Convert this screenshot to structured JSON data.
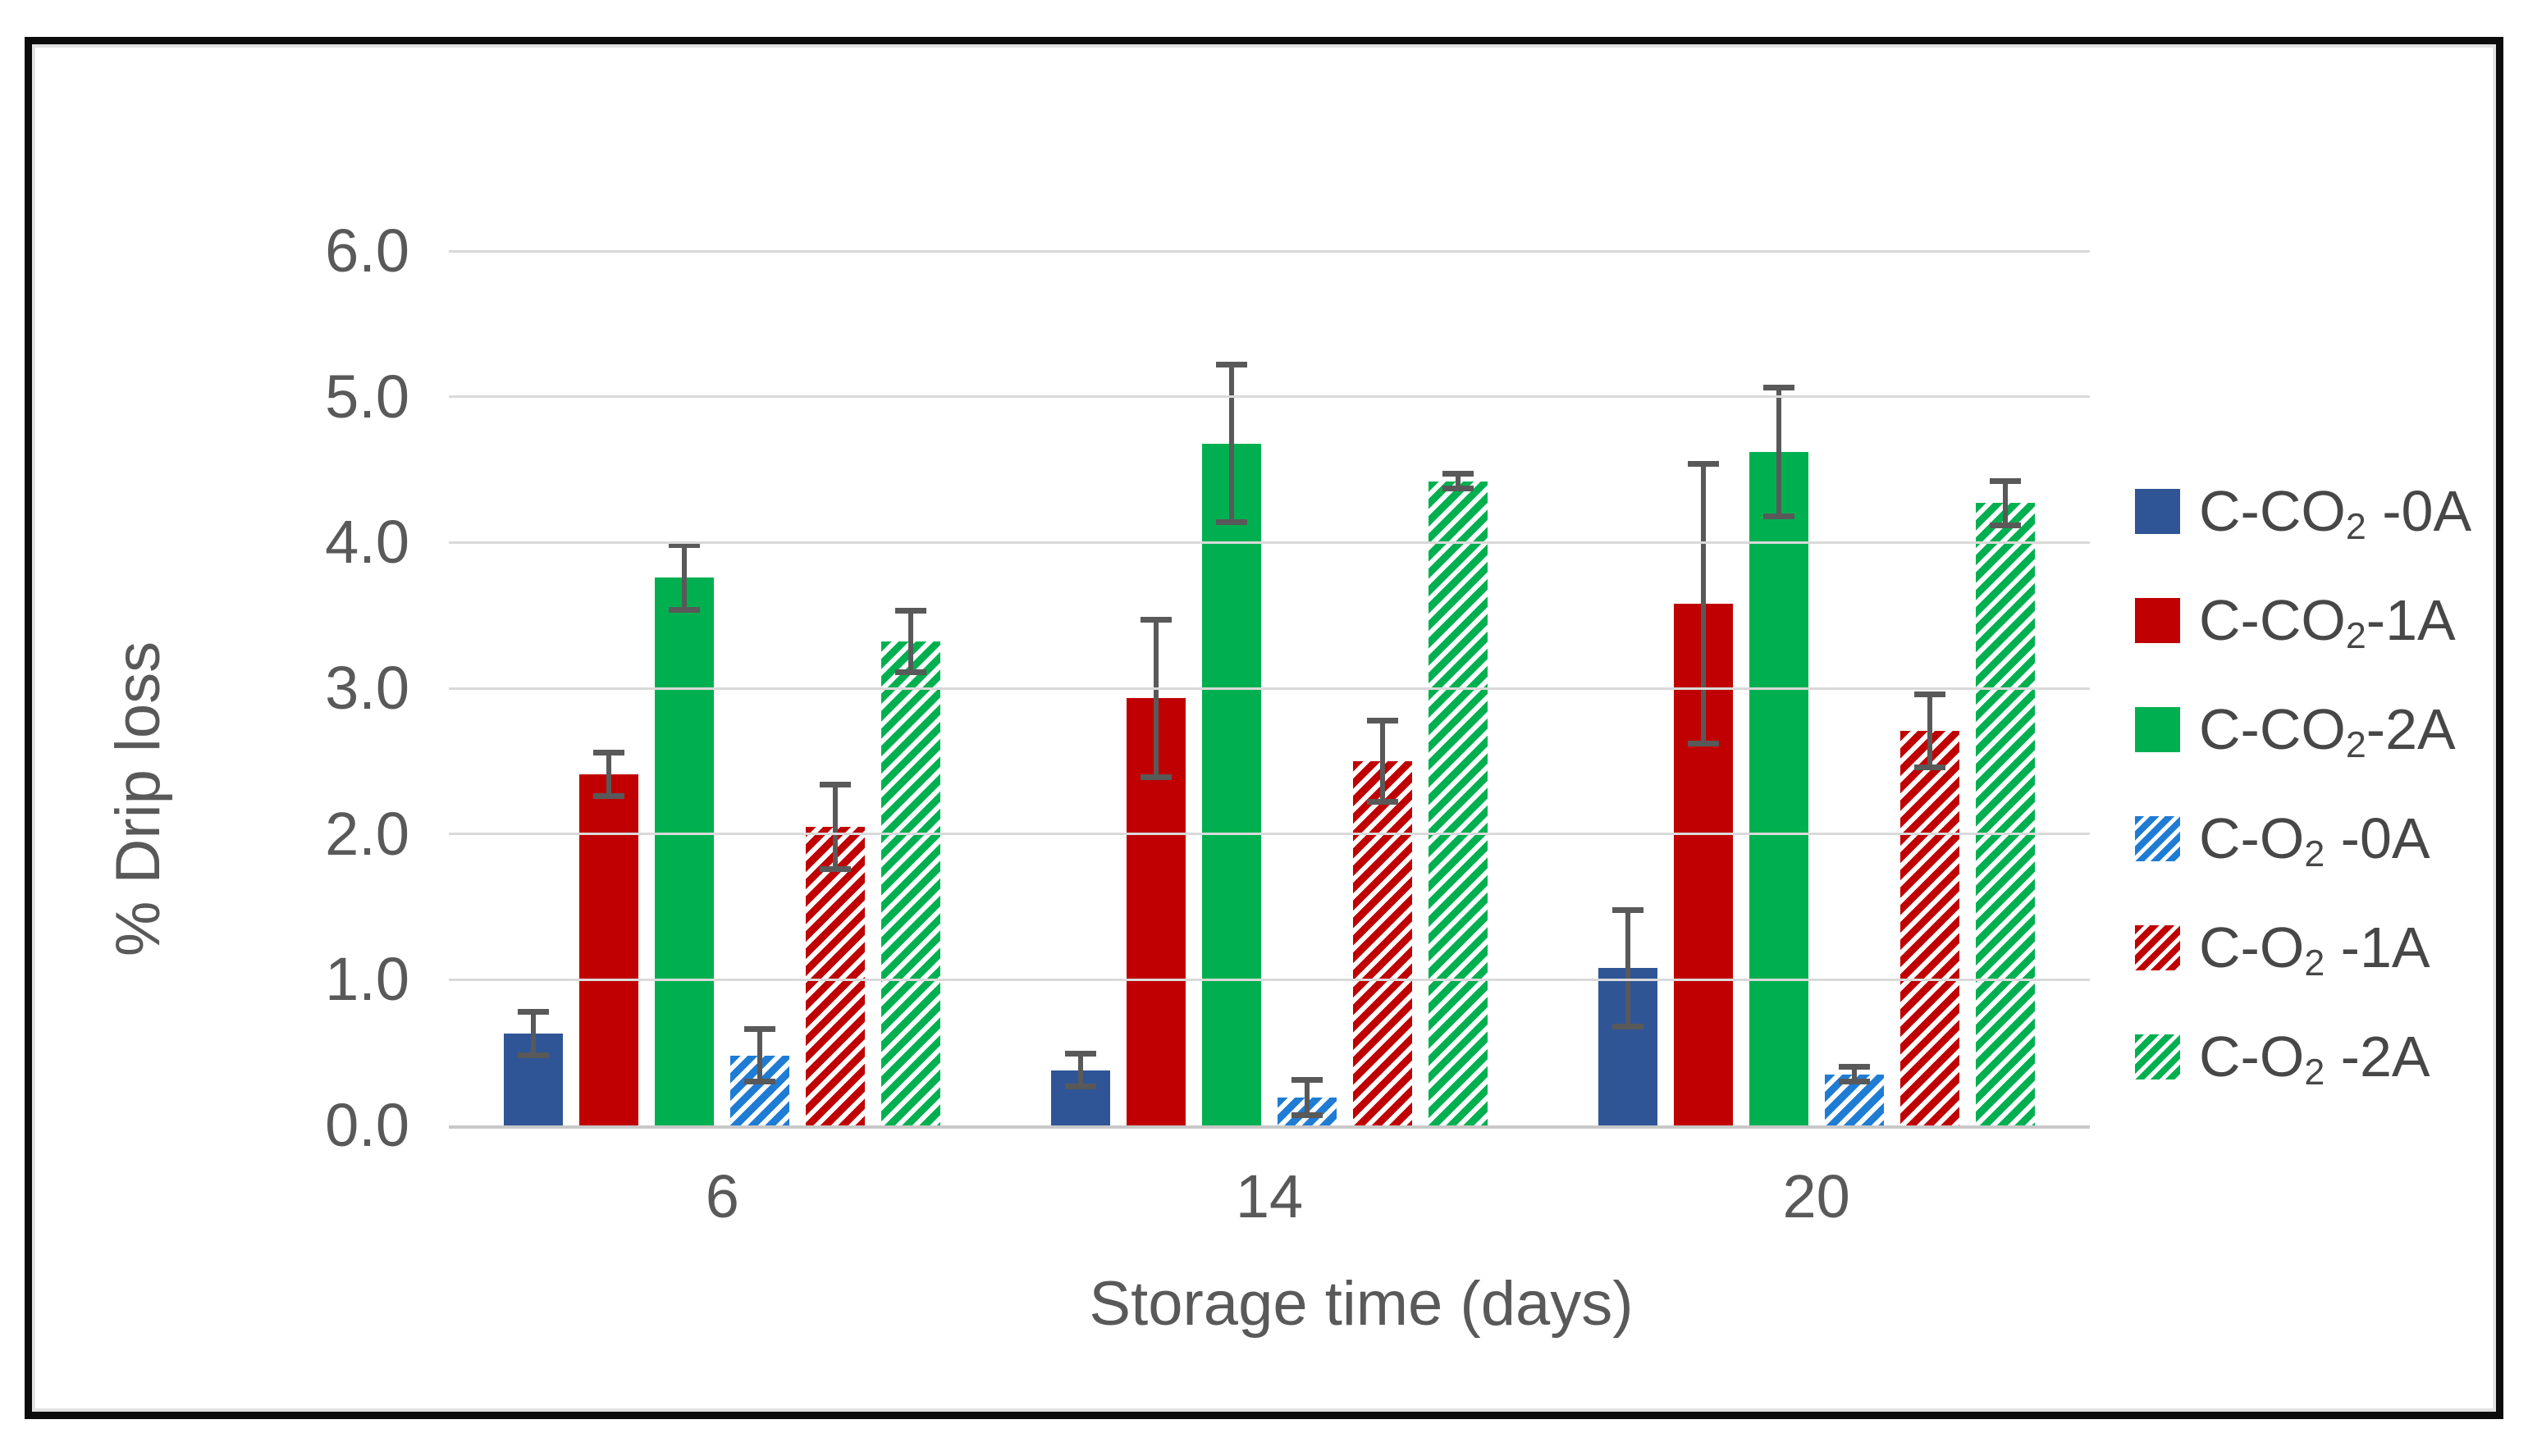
{
  "figure": {
    "background": "#ffffff",
    "border_color": "#0c0c0c"
  },
  "chart_data": {
    "type": "bar",
    "title": "",
    "xlabel": "Storage time (days)",
    "ylabel": "% Drip loss",
    "categories": [
      "6",
      "14",
      "20"
    ],
    "y_ticks": [
      "0.0",
      "1.0",
      "2.0",
      "3.0",
      "4.0",
      "5.0",
      "6.0"
    ],
    "ylim": [
      0,
      6
    ],
    "grid": true,
    "legend_position": "right",
    "error_bar_color": "#595959",
    "gridline_color": "#d9d9d9",
    "axis_text_color": "#595959",
    "series": [
      {
        "label": {
          "pre": "C-CO",
          "sub": "2",
          "post": " -0A"
        },
        "fill": "solid",
        "color": "#2F5597",
        "values": [
          0.63,
          0.38,
          1.08
        ],
        "errors": [
          0.17,
          0.13,
          0.42
        ]
      },
      {
        "label": {
          "pre": "C-CO",
          "sub": "2",
          "post": "-1A"
        },
        "fill": "solid",
        "color": "#C00000",
        "values": [
          2.41,
          2.93,
          3.58
        ],
        "errors": [
          0.17,
          0.56,
          0.98
        ]
      },
      {
        "label": {
          "pre": "C-CO",
          "sub": "2",
          "post": "-2A"
        },
        "fill": "solid",
        "color": "#00B050",
        "values": [
          3.76,
          4.68,
          4.62
        ],
        "errors": [
          0.24,
          0.56,
          0.46
        ]
      },
      {
        "label": {
          "pre": "C-O",
          "sub": "2",
          "post": " -0A"
        },
        "fill": "hatch",
        "color": "#1F7CD4",
        "values": [
          0.48,
          0.19,
          0.35
        ],
        "errors": [
          0.2,
          0.14,
          0.07
        ]
      },
      {
        "label": {
          "pre": "C-O",
          "sub": "2",
          "post": " -1A"
        },
        "fill": "hatch",
        "color": "#C00000",
        "values": [
          2.05,
          2.5,
          2.71
        ],
        "errors": [
          0.31,
          0.3,
          0.27
        ]
      },
      {
        "label": {
          "pre": "C-O",
          "sub": "2",
          "post": " -2A"
        },
        "fill": "hatch",
        "color": "#00B050",
        "values": [
          3.32,
          4.42,
          4.27
        ],
        "errors": [
          0.23,
          0.07,
          0.17
        ]
      }
    ]
  }
}
